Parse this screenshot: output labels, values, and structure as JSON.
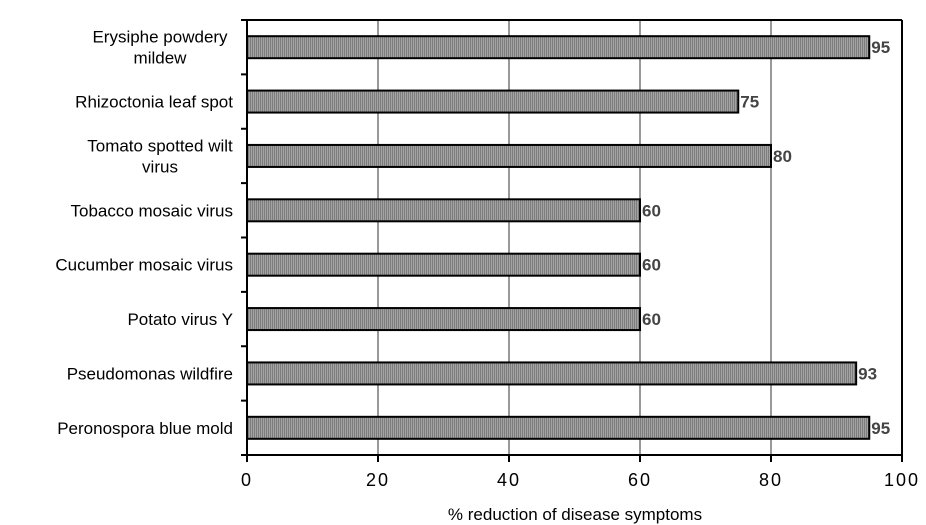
{
  "chart_data": {
    "type": "bar",
    "orientation": "horizontal",
    "categories": [
      "Erysiphe powdery mildew",
      "Rhizoctonia leaf spot",
      "Tomato spotted wilt virus",
      "Tobacco mosaic virus",
      "Cucumber mosaic virus",
      "Potato virus Y",
      "Pseudomonas wildfire",
      "Peronospora blue mold"
    ],
    "category_lines": [
      [
        "Erysiphe powdery",
        "mildew"
      ],
      [
        "Rhizoctonia leaf spot"
      ],
      [
        "Tomato spotted wilt",
        "virus"
      ],
      [
        "Tobacco mosaic virus"
      ],
      [
        "Cucumber mosaic virus"
      ],
      [
        "Potato virus Y"
      ],
      [
        "Pseudomonas wildfire"
      ],
      [
        "Peronospora blue mold"
      ]
    ],
    "values": [
      95,
      75,
      80,
      60,
      60,
      60,
      93,
      95
    ],
    "data_labels": [
      "95",
      "75",
      "80",
      "60",
      "60",
      "60",
      "93",
      "95"
    ],
    "xlabel": "% reduction of disease symptoms",
    "xlim": [
      0,
      100
    ],
    "xticks": [
      0,
      20,
      40,
      60,
      80,
      100
    ],
    "xtick_labels": [
      "0",
      "20",
      "40",
      "60",
      "80",
      "100"
    ],
    "grid": "vertical major gridlines",
    "legend": "none",
    "colors": {
      "bar_fill": "#9a9a9a",
      "bar_stroke": "#000000",
      "gridline": "#999999",
      "value_label": "#444444"
    }
  }
}
